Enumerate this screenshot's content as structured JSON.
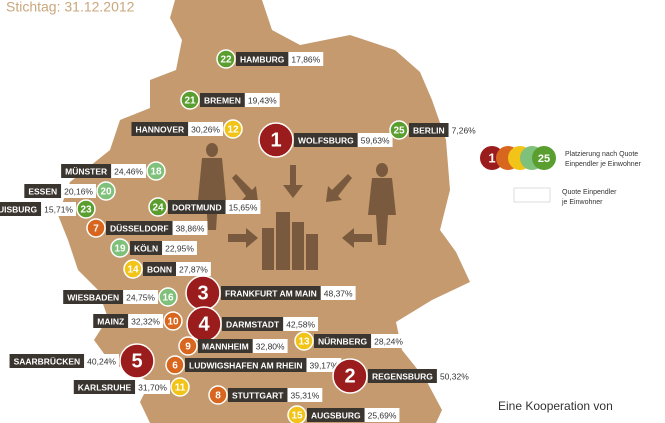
{
  "subtitle": "Stichtag: 31.12.2012",
  "legend": {
    "first_rank": 1,
    "last_rank": 25,
    "rank_label": [
      "Platzierung nach Quote",
      "Einpendler je Einwohner"
    ],
    "quote_label": [
      "Quote Einpendler",
      "je Einwohner"
    ]
  },
  "footer": "Eine Kooperation von",
  "cities": [
    {
      "rank": 22,
      "name": "HAMBURG",
      "quote": "17,86%"
    },
    {
      "rank": 21,
      "name": "BREMEN",
      "quote": "19,43%"
    },
    {
      "rank": 12,
      "name": "HANNOVER",
      "quote": "30,26%"
    },
    {
      "rank": 1,
      "name": "WOLFSBURG",
      "quote": "59,63%"
    },
    {
      "rank": 25,
      "name": "BERLIN",
      "quote": "7,26%"
    },
    {
      "rank": 18,
      "name": "MÜNSTER",
      "quote": "24,46%"
    },
    {
      "rank": 20,
      "name": "ESSEN",
      "quote": "20,16%"
    },
    {
      "rank": 23,
      "name": "DUISBURG",
      "quote": "15,71%"
    },
    {
      "rank": 24,
      "name": "DORTMUND",
      "quote": "15,65%"
    },
    {
      "rank": 7,
      "name": "DÜSSELDORF",
      "quote": "38,86%"
    },
    {
      "rank": 19,
      "name": "KÖLN",
      "quote": "22,95%"
    },
    {
      "rank": 14,
      "name": "BONN",
      "quote": "27,87%"
    },
    {
      "rank": 16,
      "name": "WIESBADEN",
      "quote": "24,75%"
    },
    {
      "rank": 3,
      "name": "FRANKFURT AM MAIN",
      "quote": "48,37%"
    },
    {
      "rank": 10,
      "name": "MAINZ",
      "quote": "32,32%"
    },
    {
      "rank": 4,
      "name": "DARMSTADT",
      "quote": "42,58%"
    },
    {
      "rank": 9,
      "name": "MANNHEIM",
      "quote": "32,80%"
    },
    {
      "rank": 13,
      "name": "NÜRNBERG",
      "quote": "28,24%"
    },
    {
      "rank": 5,
      "name": "SAARBRÜCKEN",
      "quote": "40,24%"
    },
    {
      "rank": 6,
      "name": "LUDWIGSHAFEN AM RHEIN",
      "quote": "39,17%"
    },
    {
      "rank": 2,
      "name": "REGENSBURG",
      "quote": "50,32%"
    },
    {
      "rank": 11,
      "name": "KARLSRUHE",
      "quote": "31,70%"
    },
    {
      "rank": 8,
      "name": "STUTTGART",
      "quote": "35,31%"
    },
    {
      "rank": 15,
      "name": "AUGSBURG",
      "quote": "25,69%"
    }
  ]
}
